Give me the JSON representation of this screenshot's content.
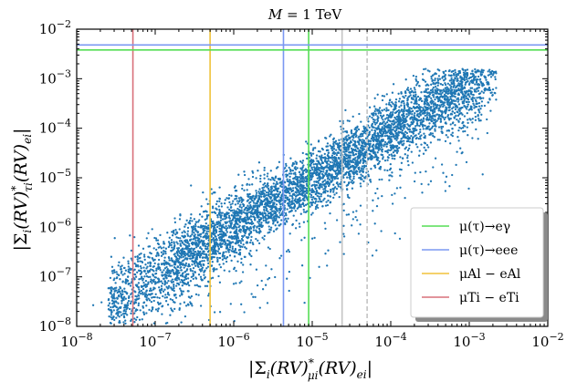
{
  "chart_data": {
    "type": "scatter",
    "title": "M = 1 TeV",
    "title_lhs": "M",
    "title_rhs": "1 TeV",
    "xlabel": "|Σ_i (RV)*_{μi} (RV)_{ei}|",
    "xlabel_parts": {
      "open": "|Σ",
      "i": "i",
      "rv1": "(RV)",
      "star": "*",
      "sub1": "μi",
      "rv2": "(RV)",
      "sub2": "ei",
      "close": "|"
    },
    "ylabel": "|Σ_i (RV)*_{τi} (RV)_{ei}|",
    "ylabel_parts": {
      "open": "|Σ",
      "i": "i",
      "rv1": "(RV)",
      "star": "*",
      "sub1": "τi",
      "rv2": "(RV)",
      "sub2": "ei",
      "close": "|"
    },
    "x_scale": "log",
    "y_scale": "log",
    "xlim": [
      1e-08,
      0.01
    ],
    "ylim": [
      1e-08,
      0.01
    ],
    "x_ticks": [
      {
        "value": 1e-08,
        "base": "10",
        "exp": "−8"
      },
      {
        "value": 1e-07,
        "base": "10",
        "exp": "−7"
      },
      {
        "value": 1e-06,
        "base": "10",
        "exp": "−6"
      },
      {
        "value": 1e-05,
        "base": "10",
        "exp": "−5"
      },
      {
        "value": 0.0001,
        "base": "10",
        "exp": "−4"
      },
      {
        "value": 0.001,
        "base": "10",
        "exp": "−3"
      },
      {
        "value": 0.01,
        "base": "10",
        "exp": "−2"
      }
    ],
    "y_ticks": [
      {
        "value": 1e-08,
        "base": "10",
        "exp": "−8"
      },
      {
        "value": 1e-07,
        "base": "10",
        "exp": "−7"
      },
      {
        "value": 1e-06,
        "base": "10",
        "exp": "−6"
      },
      {
        "value": 1e-05,
        "base": "10",
        "exp": "−5"
      },
      {
        "value": 0.0001,
        "base": "10",
        "exp": "−4"
      },
      {
        "value": 0.001,
        "base": "10",
        "exp": "−3"
      },
      {
        "value": 0.01,
        "base": "10",
        "exp": "−2"
      }
    ],
    "scatter": {
      "color": "#1f77b4",
      "count": 5500,
      "trend": "log10(y) ≈ log10(x) − 0.04 · (log10(x) + 5.5)",
      "x_range": [
        1.5e-08,
        0.0022
      ],
      "y_range": [
        1e-08,
        0.0015
      ]
    },
    "vertical_lines": [
      {
        "name": "mu-ti-e-ti",
        "x": 5.2e-08,
        "color": "#d9707a",
        "style": "solid"
      },
      {
        "name": "mu-al-e-al",
        "x": 5e-07,
        "color": "#f0c23a",
        "style": "solid"
      },
      {
        "name": "mu-eee",
        "x": 4.3e-06,
        "color": "#7b98f2",
        "style": "solid"
      },
      {
        "name": "mu-e-gamma",
        "x": 9e-06,
        "color": "#55dd55",
        "style": "solid"
      },
      {
        "name": "gray-solid",
        "x": 2.4e-05,
        "color": "#c4c4c4",
        "style": "solid"
      },
      {
        "name": "gray-dashed",
        "x": 5e-05,
        "color": "#c4c4c4",
        "style": "dashed"
      }
    ],
    "horizontal_lines": [
      {
        "name": "tau-eee",
        "y": 0.0048,
        "color": "#7b98f2",
        "style": "solid"
      },
      {
        "name": "tau-e-gamma",
        "y": 0.0038,
        "color": "#55dd55",
        "style": "solid"
      }
    ],
    "legend": {
      "position": "lower-right",
      "entries": [
        {
          "label": "μ(τ)→eγ",
          "color": "#55dd55"
        },
        {
          "label": "μ(τ)→eee",
          "color": "#7b98f2"
        },
        {
          "label": "μAl − eAl",
          "color": "#f0c23a"
        },
        {
          "label": "μTi − eTi",
          "color": "#d9707a"
        }
      ]
    }
  }
}
